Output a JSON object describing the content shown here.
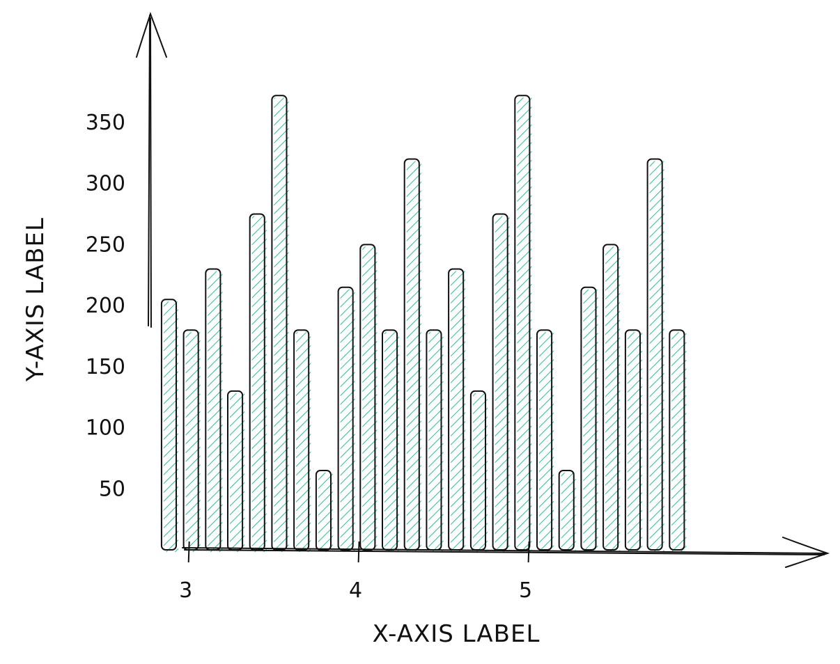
{
  "chart_data": {
    "type": "bar",
    "xlabel": "X-AXIS LABEL",
    "ylabel": "Y-AXIS LABEL",
    "x_ticks": [
      3,
      4,
      5
    ],
    "y_ticks": [
      50,
      100,
      150,
      200,
      250,
      300,
      350
    ],
    "xlim": [
      2.78,
      6.42
    ],
    "ylim": [
      0,
      440
    ],
    "bar_width": 0.12,
    "colors": {
      "bar_fill": "#2ebd8e",
      "stroke": "#111111",
      "background": "#ffffff"
    },
    "fill_style": "hatched",
    "grid": false,
    "x": [
      2.88,
      3.01,
      3.14,
      3.27,
      3.4,
      3.53,
      3.66,
      3.79,
      3.92,
      4.05,
      4.18,
      4.31,
      4.44,
      4.57,
      4.7,
      4.83,
      4.96,
      5.09,
      5.22,
      5.35,
      5.48,
      5.61,
      5.74,
      5.87
    ],
    "values": [
      205,
      180,
      230,
      130,
      275,
      372,
      180,
      65,
      215,
      250,
      180,
      320,
      180,
      230,
      130,
      275,
      372,
      180,
      65,
      215,
      250,
      180,
      320,
      180
    ]
  }
}
